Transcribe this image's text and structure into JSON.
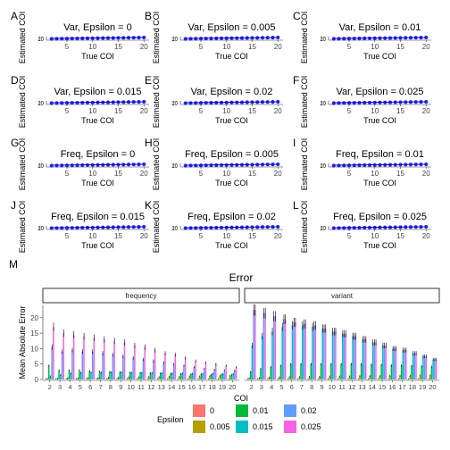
{
  "panel_labels": [
    "A",
    "B",
    "C",
    "D",
    "E",
    "F",
    "G",
    "H",
    "I",
    "J",
    "K",
    "L",
    "M"
  ],
  "small_axes": {
    "xlabel": "True COI",
    "ylabel": "Estimated COI",
    "x_ticks": [
      "5",
      "10",
      "15",
      "20"
    ],
    "y_ticks": [
      "10",
      "20"
    ]
  },
  "colors": {
    "point": "#0000ff",
    "line": "#000000",
    "strip_fill": "#ffffff",
    "axis": "#333333",
    "epsilon": {
      "0": "#f8766d",
      "0.005": "#b79f00",
      "0.01": "#00ba38",
      "0.015": "#00bfc4",
      "0.02": "#619cff",
      "0.025": "#f564e3"
    }
  },
  "chart_data": [
    {
      "type": "scatter",
      "panel": "A",
      "title": "Var, Epsilon = 0",
      "xlabel": "True COI",
      "ylabel": "Estimated COI",
      "xlim": [
        1,
        21
      ],
      "x": [
        2,
        3,
        4,
        5,
        6,
        7,
        8,
        9,
        10,
        11,
        12,
        13,
        14,
        15,
        16,
        17,
        18,
        19,
        20
      ],
      "y": [
        2,
        3,
        4,
        5,
        6,
        7,
        8,
        9,
        10,
        11,
        12,
        13,
        14,
        15,
        16,
        17,
        18,
        19,
        20
      ]
    },
    {
      "type": "scatter",
      "panel": "B",
      "title": "Var, Epsilon = 0.005",
      "xlabel": "True COI",
      "ylabel": "Estimated COI",
      "xlim": [
        1,
        21
      ],
      "x": [
        2,
        3,
        4,
        5,
        6,
        7,
        8,
        9,
        10,
        11,
        12,
        13,
        14,
        15,
        16,
        17,
        18,
        19,
        20
      ],
      "y": [
        2,
        3,
        4,
        5,
        6,
        7,
        8,
        9,
        10,
        11,
        12,
        13,
        14,
        15,
        16,
        17,
        18,
        19,
        20
      ]
    },
    {
      "type": "scatter",
      "panel": "C",
      "title": "Var, Epsilon = 0.01",
      "xlabel": "True COI",
      "ylabel": "Estimated COI",
      "xlim": [
        1,
        21
      ],
      "x": [
        2,
        3,
        4,
        5,
        6,
        7,
        8,
        9,
        10,
        11,
        12,
        13,
        14,
        15,
        16,
        17,
        18,
        19,
        20
      ],
      "y": [
        2,
        3,
        4,
        5,
        6,
        7,
        8,
        9,
        10,
        11,
        12,
        13,
        14,
        15,
        16,
        17,
        18,
        19,
        20
      ]
    },
    {
      "type": "scatter",
      "panel": "D",
      "title": "Var, Epsilon = 0.015",
      "xlabel": "True COI",
      "ylabel": "Estimated COI",
      "xlim": [
        1,
        21
      ],
      "x": [
        2,
        3,
        4,
        5,
        6,
        7,
        8,
        9,
        10,
        11,
        12,
        13,
        14,
        15,
        16,
        17,
        18,
        19,
        20
      ],
      "y": [
        2,
        3,
        4,
        5,
        6,
        7,
        8,
        9,
        10,
        11,
        12,
        13,
        14,
        15,
        16,
        17,
        18,
        19,
        20
      ]
    },
    {
      "type": "scatter",
      "panel": "E",
      "title": "Var, Epsilon = 0.02",
      "xlabel": "True COI",
      "ylabel": "Estimated COI",
      "xlim": [
        1,
        21
      ],
      "x": [
        2,
        3,
        4,
        5,
        6,
        7,
        8,
        9,
        10,
        11,
        12,
        13,
        14,
        15,
        16,
        17,
        18,
        19,
        20
      ],
      "y": [
        2,
        3,
        4,
        5,
        6,
        7,
        8,
        9,
        10,
        11,
        12,
        13,
        14,
        15,
        16,
        17,
        18,
        19,
        20
      ]
    },
    {
      "type": "scatter",
      "panel": "F",
      "title": "Var, Epsilon = 0.025",
      "xlabel": "True COI",
      "ylabel": "Estimated COI",
      "xlim": [
        1,
        21
      ],
      "x": [
        2,
        3,
        4,
        5,
        6,
        7,
        8,
        9,
        10,
        11,
        12,
        13,
        14,
        15,
        16,
        17,
        18,
        19,
        20
      ],
      "y": [
        2,
        3,
        4,
        5,
        6,
        7,
        8,
        9,
        10,
        11,
        12,
        13,
        14,
        15,
        16,
        17,
        18,
        19,
        20
      ]
    },
    {
      "type": "scatter",
      "panel": "G",
      "title": "Freq, Epsilon = 0",
      "xlabel": "True COI",
      "ylabel": "Estimated COI",
      "xlim": [
        1,
        21
      ],
      "x": [
        2,
        3,
        4,
        5,
        6,
        7,
        8,
        9,
        10,
        11,
        12,
        13,
        14,
        15,
        16,
        17,
        18,
        19,
        20
      ],
      "y": [
        2,
        3,
        4,
        5,
        6,
        7,
        8,
        9,
        10,
        11,
        12,
        13,
        14,
        15,
        16,
        17,
        18,
        19,
        20
      ]
    },
    {
      "type": "scatter",
      "panel": "H",
      "title": "Freq, Epsilon = 0.005",
      "xlabel": "True COI",
      "ylabel": "Estimated COI",
      "xlim": [
        1,
        21
      ],
      "x": [
        2,
        3,
        4,
        5,
        6,
        7,
        8,
        9,
        10,
        11,
        12,
        13,
        14,
        15,
        16,
        17,
        18,
        19,
        20
      ],
      "y": [
        2,
        3,
        4,
        5,
        6,
        7,
        8,
        9,
        10,
        11,
        12,
        13,
        14,
        15,
        16,
        17,
        18,
        19,
        20
      ]
    },
    {
      "type": "scatter",
      "panel": "I",
      "title": "Freq, Epsilon = 0.01",
      "xlabel": "True COI",
      "ylabel": "Estimated COI",
      "xlim": [
        1,
        21
      ],
      "x": [
        2,
        3,
        4,
        5,
        6,
        7,
        8,
        9,
        10,
        11,
        12,
        13,
        14,
        15,
        16,
        17,
        18,
        19,
        20
      ],
      "y": [
        2,
        3,
        4,
        5,
        6,
        7,
        8,
        9,
        10,
        11,
        12,
        13,
        14,
        15,
        16,
        17,
        18,
        19,
        20
      ]
    },
    {
      "type": "scatter",
      "panel": "J",
      "title": "Freq, Epsilon = 0.015",
      "xlabel": "True COI",
      "ylabel": "Estimated COI",
      "xlim": [
        1,
        21
      ],
      "x": [
        2,
        3,
        4,
        5,
        6,
        7,
        8,
        9,
        10,
        11,
        12,
        13,
        14,
        15,
        16,
        17,
        18,
        19,
        20
      ],
      "y": [
        2,
        3,
        4,
        5,
        6,
        7,
        8,
        9,
        10,
        11,
        12,
        13,
        14,
        15,
        16,
        17,
        18,
        19,
        20
      ]
    },
    {
      "type": "scatter",
      "panel": "K",
      "title": "Freq, Epsilon = 0.02",
      "xlabel": "True COI",
      "ylabel": "Estimated COI",
      "xlim": [
        1,
        21
      ],
      "x": [
        2,
        3,
        4,
        5,
        6,
        7,
        8,
        9,
        10,
        11,
        12,
        13,
        14,
        15,
        16,
        17,
        18,
        19,
        20
      ],
      "y": [
        2,
        3,
        4,
        5,
        6,
        7,
        8,
        9,
        10,
        11,
        12,
        13,
        14,
        15,
        16,
        17,
        18,
        19,
        20
      ]
    },
    {
      "type": "scatter",
      "panel": "L",
      "title": "Freq, Epsilon = 0.025",
      "xlabel": "True COI",
      "ylabel": "Estimated COI",
      "xlim": [
        1,
        21
      ],
      "x": [
        2,
        3,
        4,
        5,
        6,
        7,
        8,
        9,
        10,
        11,
        12,
        13,
        14,
        15,
        16,
        17,
        18,
        19,
        20
      ],
      "y": [
        2,
        3,
        4,
        5,
        6,
        7,
        8,
        9,
        10,
        11,
        12,
        13,
        14,
        15,
        16,
        17,
        18,
        19,
        20
      ]
    },
    {
      "type": "bar",
      "panel": "M",
      "title": "Error",
      "xlabel": "COI",
      "ylabel": "Mean Absolute Error",
      "ylim": [
        0,
        24
      ],
      "y_ticks": [
        0,
        5,
        10,
        15,
        20
      ],
      "categories": [
        "2",
        "3",
        "4",
        "5",
        "6",
        "7",
        "8",
        "9",
        "10",
        "11",
        "12",
        "13",
        "14",
        "15",
        "16",
        "17",
        "18",
        "19",
        "20"
      ],
      "legend": {
        "title": "Epsilon",
        "position": "bottom",
        "entries": [
          "0",
          "0.005",
          "0.01",
          "0.015",
          "0.02",
          "0.025"
        ]
      },
      "facets": [
        {
          "name": "frequency",
          "series": [
            {
              "name": "0",
              "values": [
                0.1,
                0.1,
                0.1,
                0.1,
                0.1,
                0.1,
                0.1,
                0.1,
                0.1,
                0.1,
                0.1,
                0.1,
                0.1,
                0.1,
                0.1,
                0.1,
                0.1,
                0.1,
                0.1
              ]
            },
            {
              "name": "0.005",
              "values": [
                0.2,
                0.3,
                0.4,
                0.4,
                0.5,
                0.5,
                0.6,
                0.6,
                0.7,
                0.7,
                0.8,
                0.8,
                0.9,
                0.9,
                1.0,
                1.0,
                1.1,
                1.1,
                1.2
              ]
            },
            {
              "name": "0.01",
              "values": [
                4.5,
                3.0,
                3.0,
                3.0,
                2.8,
                2.6,
                2.5,
                2.4,
                2.3,
                2.2,
                2.1,
                2.0,
                1.9,
                1.8,
                1.7,
                1.7,
                1.6,
                1.6,
                1.5
              ]
            },
            {
              "name": "0.015",
              "values": [
                1.0,
                1.5,
                2.0,
                2.2,
                2.3,
                2.3,
                2.3,
                2.3,
                2.2,
                2.2,
                2.1,
                2.1,
                2.0,
                2.0,
                1.9,
                1.9,
                1.9,
                1.8,
                1.8
              ]
            },
            {
              "name": "0.02",
              "values": [
                10.5,
                9.0,
                9.5,
                9.0,
                9.0,
                8.5,
                8.0,
                7.5,
                7.0,
                6.5,
                6.0,
                5.5,
                5.0,
                4.5,
                4.0,
                3.5,
                3.2,
                3.0,
                2.8
              ]
            },
            {
              "name": "0.025",
              "values": [
                17.0,
                15.0,
                14.5,
                14.0,
                13.5,
                13.0,
                12.5,
                12.0,
                11.0,
                10.5,
                9.5,
                8.5,
                8.0,
                7.0,
                6.0,
                5.5,
                5.0,
                4.5,
                4.0
              ]
            }
          ]
        },
        {
          "name": "variant",
          "series": [
            {
              "name": "0",
              "values": [
                0.1,
                0.1,
                0.1,
                0.1,
                0.1,
                0.1,
                0.1,
                0.1,
                0.1,
                0.1,
                0.1,
                0.1,
                0.1,
                0.1,
                0.1,
                0.1,
                0.1,
                0.1,
                0.1
              ]
            },
            {
              "name": "0.005",
              "values": [
                0.4,
                0.5,
                0.6,
                0.7,
                0.8,
                0.8,
                0.9,
                0.9,
                1.0,
                1.0,
                1.0,
                1.1,
                1.1,
                1.1,
                1.2,
                1.2,
                1.2,
                1.3,
                1.3
              ]
            },
            {
              "name": "0.01",
              "values": [
                2.5,
                3.5,
                4.0,
                4.5,
                5.0,
                5.0,
                5.0,
                5.0,
                5.0,
                5.0,
                5.0,
                5.0,
                4.8,
                4.8,
                4.6,
                4.5,
                4.4,
                4.3,
                4.2
              ]
            },
            {
              "name": "0.015",
              "values": [
                11.0,
                14.0,
                15.5,
                17.0,
                17.5,
                17.5,
                17.0,
                16.5,
                15.5,
                14.8,
                14.0,
                13.0,
                12.0,
                11.0,
                10.0,
                9.5,
                8.5,
                7.5,
                6.5
              ]
            },
            {
              "name": "0.02",
              "values": [
                22.5,
                21.5,
                20.5,
                19.5,
                18.5,
                18.0,
                17.5,
                16.5,
                15.5,
                14.8,
                14.0,
                13.0,
                12.0,
                11.0,
                10.0,
                9.5,
                8.5,
                7.5,
                6.5
              ]
            },
            {
              "name": "0.025",
              "values": [
                22.5,
                21.5,
                20.5,
                19.5,
                18.5,
                18.0,
                17.5,
                16.5,
                15.5,
                14.8,
                14.0,
                13.0,
                12.0,
                11.0,
                10.0,
                9.5,
                8.5,
                7.5,
                6.5
              ]
            }
          ]
        }
      ]
    }
  ]
}
